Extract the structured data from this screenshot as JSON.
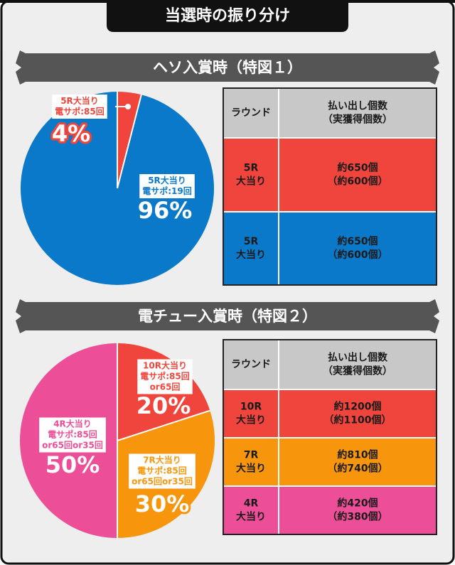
{
  "title": "当選時の振り分け",
  "chart_data": [
    {
      "type": "pie",
      "title": "ヘソ入賞時（特図１）",
      "categories": [
        [
          "5R大当り",
          "電サポ:85回"
        ],
        [
          "5R大当り",
          "電サポ:19回"
        ]
      ],
      "values": [
        4,
        96
      ],
      "value_labels": [
        "4%",
        "96%"
      ],
      "colors": [
        "#ef453c",
        "#0b79c9"
      ]
    },
    {
      "type": "pie",
      "title": "電チュー入賞時（特図２）",
      "categories": [
        [
          "10R大当り",
          "電サポ:85回",
          "or65回"
        ],
        [
          "7R大当り",
          "電サポ:85回",
          "or65回or35回"
        ],
        [
          "4R大当り",
          "電サポ:85回",
          "or65回or35回"
        ]
      ],
      "values": [
        20,
        30,
        50
      ],
      "value_labels": [
        "20%",
        "30%",
        "50%"
      ],
      "colors": [
        "#ef453c",
        "#f7960c",
        "#ec4e97"
      ]
    }
  ],
  "tables": [
    {
      "header": [
        [
          "ラウンド"
        ],
        [
          "払い出し個数",
          "（実獲得個数）"
        ]
      ],
      "rows": [
        [
          [
            "5R",
            "大当り"
          ],
          [
            "約650個",
            "（約600個）"
          ]
        ],
        [
          [
            "5R",
            "大当り"
          ],
          [
            "約650個",
            "（約600個）"
          ]
        ]
      ]
    },
    {
      "header": [
        [
          "ラウンド"
        ],
        [
          "払い出し個数",
          "（実獲得個数）"
        ]
      ],
      "rows": [
        [
          [
            "10R",
            "大当り"
          ],
          [
            "約1200個",
            "（約1100個）"
          ]
        ],
        [
          [
            "7R",
            "大当り"
          ],
          [
            "約810個",
            "（約740個）"
          ]
        ],
        [
          [
            "4R",
            "大当り"
          ],
          [
            "約420個",
            "（約380個）"
          ]
        ]
      ]
    }
  ]
}
